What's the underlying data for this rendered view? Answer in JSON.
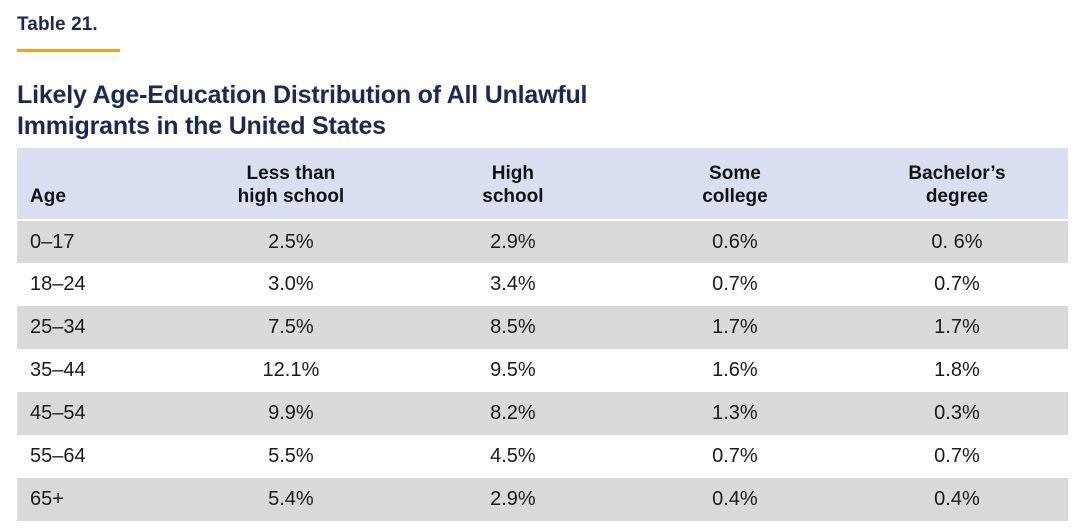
{
  "header": {
    "kicker": "Table 21.",
    "title_line1": "Likely Age-Education Distribution of All Unlawful",
    "title_line2": "Immigrants in the United States"
  },
  "colors": {
    "navy": "#1b2a55",
    "accent_orange": "#f5a01e",
    "header_row_bg": "#d9def0",
    "alt_row_bg": "#d9d9d9",
    "body_text": "#1a1a1a"
  },
  "table": {
    "columns": [
      {
        "id": "age",
        "label_lines": [
          "Age"
        ]
      },
      {
        "id": "less-than-high-school",
        "label_lines": [
          "Less than",
          "high school"
        ]
      },
      {
        "id": "high-school",
        "label_lines": [
          "High",
          "school"
        ]
      },
      {
        "id": "some-college",
        "label_lines": [
          "Some",
          "college"
        ]
      },
      {
        "id": "bachelors-degree",
        "label_lines": [
          "Bachelor’s",
          "degree"
        ]
      }
    ],
    "rows": [
      {
        "age": "0–17",
        "values": [
          "2.5%",
          "2.9%",
          "0.6%",
          "0. 6%"
        ]
      },
      {
        "age": "18–24",
        "values": [
          "3.0%",
          "3.4%",
          "0.7%",
          "0.7%"
        ]
      },
      {
        "age": "25–34",
        "values": [
          "7.5%",
          "8.5%",
          "1.7%",
          "1.7%"
        ]
      },
      {
        "age": "35–44",
        "values": [
          "12.1%",
          "9.5%",
          "1.6%",
          "1.8%"
        ]
      },
      {
        "age": "45–54",
        "values": [
          "9.9%",
          "8.2%",
          "1.3%",
          "0.3%"
        ]
      },
      {
        "age": "55–64",
        "values": [
          "5.5%",
          "4.5%",
          "0.7%",
          "0.7%"
        ]
      },
      {
        "age": "65+",
        "values": [
          "5.4%",
          "2.9%",
          "0.4%",
          "0.4%"
        ]
      }
    ]
  },
  "chart_data": {
    "type": "table",
    "title": "Likely Age-Education Distribution of All Unlawful Immigrants in the United States",
    "caption_label": "Table 21.",
    "units": "percent",
    "columns": [
      "Age",
      "Less than high school",
      "High school",
      "Some college",
      "Bachelor's degree"
    ],
    "rows": [
      [
        "0–17",
        2.5,
        2.9,
        0.6,
        0.6
      ],
      [
        "18–24",
        3.0,
        3.4,
        0.7,
        0.7
      ],
      [
        "25–34",
        7.5,
        8.5,
        1.7,
        1.7
      ],
      [
        "35–44",
        12.1,
        9.5,
        1.6,
        1.8
      ],
      [
        "45–54",
        9.9,
        8.2,
        1.3,
        0.3
      ],
      [
        "55–64",
        5.5,
        4.5,
        0.7,
        0.7
      ],
      [
        "65+",
        5.4,
        2.9,
        0.4,
        0.4
      ]
    ]
  }
}
